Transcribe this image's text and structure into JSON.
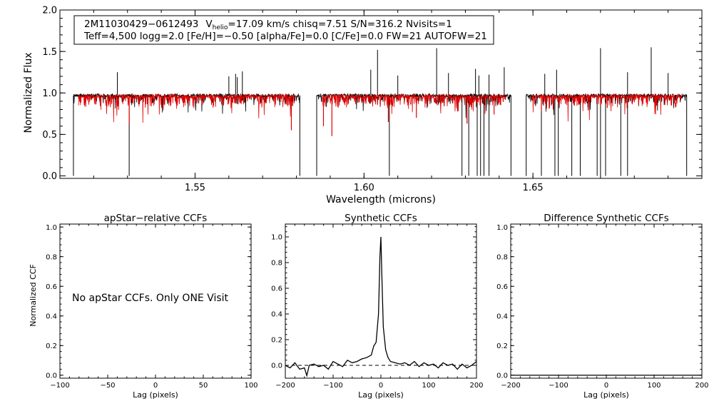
{
  "chart_data": [
    {
      "type": "line",
      "panel": "spectrum",
      "xlabel": "Wavelength (microns)",
      "ylabel": "Normalized Flux",
      "xlim": [
        1.51,
        1.7
      ],
      "ylim": [
        -0.03,
        2.0
      ],
      "xticks": [
        "1.55",
        "1.60",
        "1.65"
      ],
      "xtick_values": [
        1.55,
        1.6,
        1.65
      ],
      "yticks": [
        "0.0",
        "0.5",
        "1.0",
        "1.5",
        "2.0"
      ],
      "ytick_values": [
        0.0,
        0.5,
        1.0,
        1.5,
        2.0
      ],
      "info_box": {
        "object_id": "2M11030429−0612493",
        "vhelio_prefix": "V",
        "vhelio_sub": "helio",
        "vhelio_rest": "=17.09 km/s  chisq=7.51  S/N=316.2  Nvisits=1",
        "line2": "Teff=4,500 logg=2.0 [Fe/H]=−0.50 [alpha/Fe]=0.0 [C/Fe]=0.0 FW=21 AUTOFW=21"
      },
      "chips": [
        [
          1.514,
          1.581
        ],
        [
          1.586,
          1.6435
        ],
        [
          1.648,
          1.6955
        ]
      ],
      "series": [
        {
          "color": "#000000",
          "continuum": 0.97,
          "emission_spikes": [
            [
              1.527,
              1.25
            ],
            [
              1.56,
              1.2
            ],
            [
              1.562,
              1.23
            ],
            [
              1.5625,
              1.19
            ],
            [
              1.564,
              1.26
            ],
            [
              1.602,
              1.28
            ],
            [
              1.604,
              1.52
            ],
            [
              1.61,
              1.21
            ],
            [
              1.6215,
              1.54
            ],
            [
              1.625,
              1.24
            ],
            [
              1.633,
              1.29
            ],
            [
              1.634,
              1.21
            ],
            [
              1.637,
              1.22
            ],
            [
              1.6415,
              1.31
            ],
            [
              1.6535,
              1.23
            ],
            [
              1.657,
              1.28
            ],
            [
              1.67,
              1.54
            ],
            [
              1.678,
              1.25
            ],
            [
              1.685,
              1.55
            ],
            [
              1.69,
              1.24
            ]
          ],
          "drops_to_zero": [
            1.514,
            1.5305,
            1.581,
            1.586,
            1.6075,
            1.629,
            1.631,
            1.6335,
            1.6345,
            1.6355,
            1.637,
            1.6435,
            1.648,
            1.6525,
            1.6565,
            1.6575,
            1.6615,
            1.664,
            1.669,
            1.67,
            1.6715,
            1.676,
            1.678,
            1.6955
          ]
        },
        {
          "color": "#e00000",
          "continuum": 0.96,
          "deep_lines": [
            [
              1.5305,
              0.62
            ],
            [
              1.5785,
              0.55
            ],
            [
              1.588,
              0.6
            ],
            [
              1.5905,
              0.48
            ],
            [
              1.6072,
              0.65
            ],
            [
              1.6155,
              0.7
            ],
            [
              1.6305,
              0.63
            ],
            [
              1.6385,
              0.74
            ],
            [
              1.6525,
              0.78
            ],
            [
              1.656,
              0.8
            ],
            [
              1.672,
              0.82
            ]
          ]
        }
      ]
    },
    {
      "type": "line",
      "panel": "apstar-ccf",
      "title": "apStar−relative CCFs",
      "xlabel": "Lag (pixels)",
      "ylabel": "Normalized CCF",
      "xlim": [
        -100,
        100
      ],
      "ylim": [
        -0.02,
        1.02
      ],
      "xticks": [
        "−100",
        "−50",
        "0",
        "50",
        "100"
      ],
      "xtick_values": [
        -100,
        -50,
        0,
        50,
        100
      ],
      "yticks": [
        "0.0",
        "0.2",
        "0.4",
        "0.6",
        "0.8",
        "1.0"
      ],
      "ytick_values": [
        0,
        0.2,
        0.4,
        0.6,
        0.8,
        1.0
      ],
      "annotation": "No apStar CCFs.  Only ONE Visit",
      "series": []
    },
    {
      "type": "line",
      "panel": "synthetic-ccf",
      "title": "Synthetic CCFs",
      "xlabel": "Lag (pixels)",
      "xlim": [
        -200,
        200
      ],
      "ylim": [
        -0.1,
        1.1
      ],
      "xticks": [
        "−200",
        "−100",
        "0",
        "100",
        "200"
      ],
      "xtick_values": [
        -200,
        -100,
        0,
        100,
        200
      ],
      "yticks": [
        "0.0",
        "0.2",
        "0.4",
        "0.6",
        "0.8",
        "1.0"
      ],
      "ytick_values": [
        0,
        0.2,
        0.4,
        0.6,
        0.8,
        1.0
      ],
      "zero_line_dashed": true,
      "series": [
        {
          "color": "#000000",
          "x": [
            -200,
            -190,
            -180,
            -170,
            -160,
            -155,
            -150,
            -140,
            -130,
            -120,
            -110,
            -100,
            -90,
            -80,
            -70,
            -60,
            -50,
            -40,
            -30,
            -20,
            -15,
            -10,
            -5,
            -2,
            0,
            2,
            5,
            10,
            15,
            20,
            30,
            40,
            50,
            60,
            70,
            80,
            90,
            100,
            110,
            120,
            130,
            140,
            150,
            160,
            170,
            180,
            190,
            200
          ],
          "y": [
            0.0,
            -0.02,
            0.02,
            -0.03,
            -0.02,
            -0.08,
            0.0,
            0.01,
            -0.01,
            0.0,
            -0.03,
            0.03,
            0.01,
            -0.01,
            0.04,
            0.02,
            0.03,
            0.05,
            0.06,
            0.08,
            0.15,
            0.18,
            0.4,
            0.85,
            1.0,
            0.7,
            0.3,
            0.12,
            0.06,
            0.03,
            0.02,
            0.01,
            0.02,
            0.0,
            0.03,
            -0.01,
            0.02,
            0.0,
            0.01,
            -0.02,
            0.02,
            0.0,
            0.01,
            -0.03,
            0.01,
            -0.02,
            0.0,
            0.03
          ]
        }
      ]
    },
    {
      "type": "line",
      "panel": "difference-ccf",
      "title": "Difference Synthetic CCFs",
      "xlabel": "Lag (pixels)",
      "xlim": [
        -200,
        200
      ],
      "ylim": [
        -0.02,
        1.02
      ],
      "xticks": [
        "−200",
        "−100",
        "0",
        "100",
        "200"
      ],
      "xtick_values": [
        -200,
        -100,
        0,
        100,
        200
      ],
      "yticks": [
        "0.0",
        "0.2",
        "0.4",
        "0.6",
        "0.8",
        "1.0"
      ],
      "ytick_values": [
        0,
        0.2,
        0.4,
        0.6,
        0.8,
        1.0
      ],
      "series": [
        {
          "color": "#000000",
          "x": [
            -200,
            200
          ],
          "y": [
            0,
            0
          ]
        }
      ]
    }
  ]
}
